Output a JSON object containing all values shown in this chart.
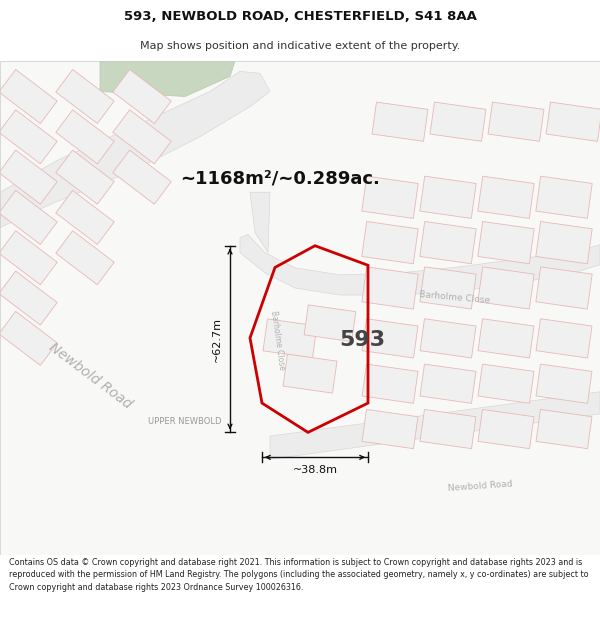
{
  "title": "593, NEWBOLD ROAD, CHESTERFIELD, S41 8AA",
  "subtitle": "Map shows position and indicative extent of the property.",
  "area_text": "~1168m²/~0.289ac.",
  "dim_height": "~62.7m",
  "dim_width": "~38.8m",
  "property_number": "593",
  "road_label_nw": "Newbold Road",
  "road_label_barholme_curve": "Barholme Close",
  "road_label_barholme_top": "Barholme Close",
  "road_label_bottom": "Newbold Road",
  "area_label": "UPPER NEWBOLD",
  "footer_text": "Contains OS data © Crown copyright and database right 2021. This information is subject to Crown copyright and database rights 2023 and is reproduced with the permission of HM Land Registry. The polygons (including the associated geometry, namely x, y co-ordinates) are subject to Crown copyright and database rights 2023 Ordnance Survey 100026316.",
  "bg_color": "#f5f5f3",
  "map_bg": "#f7f7f7",
  "road_fill": "#efefef",
  "road_edge": "#e0c8c8",
  "building_fill": "#f0f0f0",
  "building_edge": "#e8b8b8",
  "property_color": "#cc0000",
  "green_color": "#c8d8c0",
  "green_edge": "#b8c8b0",
  "dim_color": "#111111",
  "road_text_color": "#b0b0b0",
  "area_text_color": "#111111",
  "prop_num_color": "#444444",
  "upper_newbold_color": "#999999",
  "title_color": "#111111",
  "footer_color": "#222222"
}
